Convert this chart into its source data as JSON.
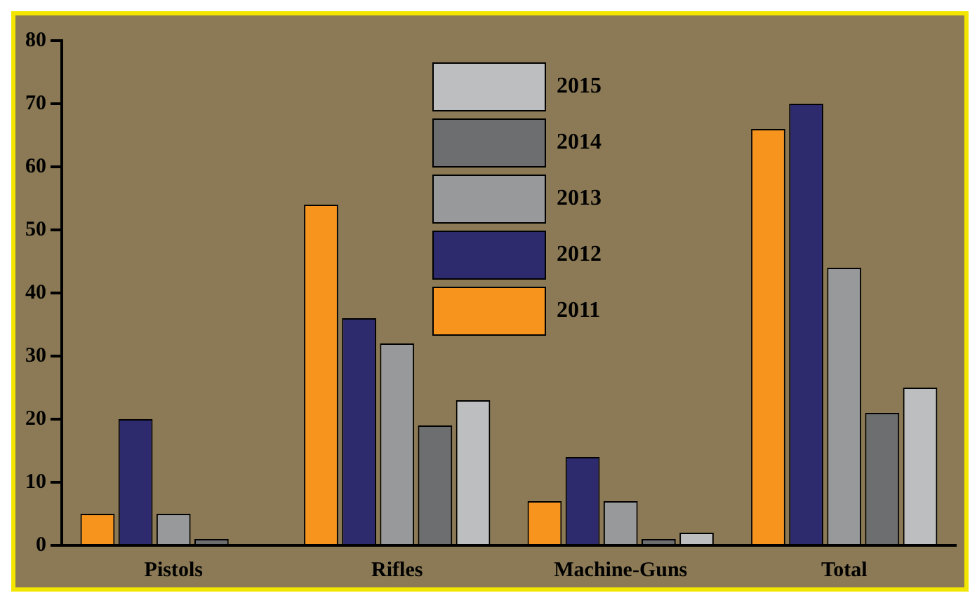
{
  "chart_data": {
    "type": "bar",
    "categories": [
      "Pistols",
      "Rifles",
      "Machine-Guns",
      "Total"
    ],
    "series": [
      {
        "name": "2011",
        "color": "#f7941d",
        "values": [
          5,
          54,
          7,
          66
        ]
      },
      {
        "name": "2012",
        "color": "#2e2a6e",
        "values": [
          20,
          36,
          14,
          70
        ]
      },
      {
        "name": "2013",
        "color": "#98999b",
        "values": [
          5,
          32,
          7,
          44
        ]
      },
      {
        "name": "2014",
        "color": "#6d6e70",
        "values": [
          1,
          19,
          1,
          21
        ]
      },
      {
        "name": "2015",
        "color": "#bcbec0",
        "values": [
          0,
          23,
          2,
          25
        ]
      }
    ],
    "ylim": [
      0,
      80
    ],
    "yticks": [
      0,
      10,
      20,
      30,
      40,
      50,
      60,
      70,
      80
    ],
    "grid": false,
    "legend": "top"
  }
}
